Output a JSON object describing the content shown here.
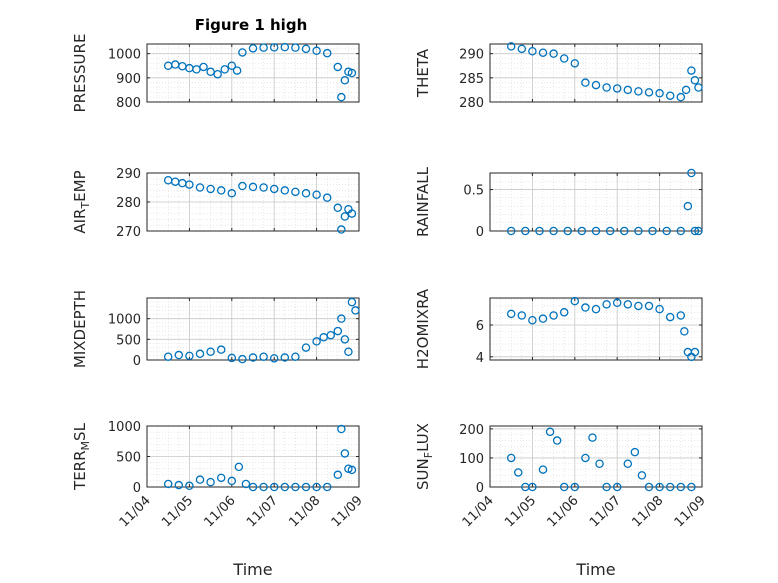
{
  "figure": {
    "title": "Figure 1 high"
  },
  "colors": {
    "marker": "#0072BD",
    "axis": "#262626",
    "grid": "#d9d9d9",
    "background": "#ffffff"
  },
  "chart_data": [
    {
      "type": "scatter",
      "ylabel": "PRESSURE",
      "ylim": [
        800,
        1040
      ],
      "yticks": [
        800,
        900,
        1000
      ],
      "ytick_labels": [
        "800",
        "900",
        "1000"
      ],
      "xlim": [
        "11/04",
        "11/09"
      ],
      "x_dates": [
        "11/04 12:00",
        "11/04 16:00",
        "11/04 20:00",
        "11/05 00:00",
        "11/05 04:00",
        "11/05 08:00",
        "11/05 12:00",
        "11/05 16:00",
        "11/05 20:00",
        "11/06 00:00",
        "11/06 03:00",
        "11/06 06:00",
        "11/06 12:00",
        "11/06 18:00",
        "11/07 00:00",
        "11/07 06:00",
        "11/07 12:00",
        "11/07 18:00",
        "11/08 00:00",
        "11/08 06:00",
        "11/08 12:00",
        "11/08 14:00",
        "11/08 16:00",
        "11/08 18:00",
        "11/08 20:00"
      ],
      "y": [
        950,
        955,
        948,
        940,
        935,
        945,
        925,
        915,
        935,
        950,
        930,
        1005,
        1022,
        1025,
        1026,
        1027,
        1025,
        1020,
        1012,
        1002,
        945,
        820,
        890,
        925,
        920
      ]
    },
    {
      "type": "scatter",
      "ylabel": "THETA",
      "ylim": [
        280,
        292
      ],
      "yticks": [
        280,
        285,
        290
      ],
      "ytick_labels": [
        "280",
        "285",
        "290"
      ],
      "xlim": [
        "11/04",
        "11/09"
      ],
      "x_dates": [
        "11/04 12:00",
        "11/04 18:00",
        "11/05 00:00",
        "11/05 06:00",
        "11/05 12:00",
        "11/05 18:00",
        "11/06 00:00",
        "11/06 06:00",
        "11/06 12:00",
        "11/06 18:00",
        "11/07 00:00",
        "11/07 06:00",
        "11/07 12:00",
        "11/07 18:00",
        "11/08 00:00",
        "11/08 06:00",
        "11/08 12:00",
        "11/08 15:00",
        "11/08 18:00",
        "11/08 20:00",
        "11/08 22:00"
      ],
      "y": [
        291.5,
        291.0,
        290.5,
        290.2,
        290.0,
        289.0,
        288.0,
        284.0,
        283.5,
        283.0,
        282.8,
        282.5,
        282.2,
        282.0,
        281.8,
        281.3,
        281.0,
        282.5,
        286.5,
        284.5,
        283.0
      ]
    },
    {
      "type": "scatter",
      "ylabel": "AIR_TEMP",
      "ylim": [
        270,
        290
      ],
      "yticks": [
        270,
        280,
        290
      ],
      "ytick_labels": [
        "270",
        "280",
        "290"
      ],
      "xlim": [
        "11/04",
        "11/09"
      ],
      "x_dates": [
        "11/04 12:00",
        "11/04 16:00",
        "11/04 20:00",
        "11/05 00:00",
        "11/05 06:00",
        "11/05 12:00",
        "11/05 18:00",
        "11/06 00:00",
        "11/06 06:00",
        "11/06 12:00",
        "11/06 18:00",
        "11/07 00:00",
        "11/07 06:00",
        "11/07 12:00",
        "11/07 18:00",
        "11/08 00:00",
        "11/08 06:00",
        "11/08 12:00",
        "11/08 14:00",
        "11/08 16:00",
        "11/08 18:00",
        "11/08 20:00"
      ],
      "y": [
        287.5,
        287.0,
        286.5,
        286.0,
        285.0,
        284.5,
        284.0,
        283.0,
        285.5,
        285.2,
        285.0,
        284.5,
        284.0,
        283.5,
        283.0,
        282.5,
        281.5,
        278.0,
        270.5,
        275.0,
        277.5,
        276.0
      ]
    },
    {
      "type": "scatter",
      "ylabel": "RAINFALL",
      "ylim": [
        0,
        0.7
      ],
      "yticks": [
        0,
        0.5
      ],
      "ytick_labels": [
        "0",
        "0.5"
      ],
      "xlim": [
        "11/04",
        "11/09"
      ],
      "x_dates": [
        "11/04 12:00",
        "11/04 20:00",
        "11/05 04:00",
        "11/05 12:00",
        "11/05 20:00",
        "11/06 04:00",
        "11/06 12:00",
        "11/06 20:00",
        "11/07 04:00",
        "11/07 12:00",
        "11/07 20:00",
        "11/08 04:00",
        "11/08 12:00",
        "11/08 16:00",
        "11/08 18:00",
        "11/08 20:00",
        "11/08 22:00"
      ],
      "y": [
        0,
        0,
        0,
        0,
        0,
        0,
        0,
        0,
        0,
        0,
        0,
        0,
        0,
        0.3,
        0.7,
        0,
        0
      ]
    },
    {
      "type": "scatter",
      "ylabel": "MIXDEPTH",
      "ylim": [
        0,
        1500
      ],
      "yticks": [
        0,
        500,
        1000
      ],
      "ytick_labels": [
        "0",
        "500",
        "1000"
      ],
      "xlim": [
        "11/04",
        "11/09"
      ],
      "x_dates": [
        "11/04 12:00",
        "11/04 18:00",
        "11/05 00:00",
        "11/05 06:00",
        "11/05 12:00",
        "11/05 18:00",
        "11/06 00:00",
        "11/06 06:00",
        "11/06 12:00",
        "11/06 18:00",
        "11/07 00:00",
        "11/07 06:00",
        "11/07 12:00",
        "11/07 18:00",
        "11/08 00:00",
        "11/08 04:00",
        "11/08 08:00",
        "11/08 12:00",
        "11/08 14:00",
        "11/08 16:00",
        "11/08 18:00",
        "11/08 20:00",
        "11/08 22:00"
      ],
      "y": [
        80,
        120,
        100,
        150,
        200,
        250,
        50,
        20,
        60,
        80,
        40,
        60,
        80,
        300,
        450,
        550,
        600,
        700,
        1000,
        500,
        200,
        1400,
        1200
      ]
    },
    {
      "type": "scatter",
      "ylabel": "H2OMIXRA",
      "ylim": [
        3.8,
        7.7
      ],
      "yticks": [
        4,
        6
      ],
      "ytick_labels": [
        "4",
        "6"
      ],
      "xlim": [
        "11/04",
        "11/09"
      ],
      "x_dates": [
        "11/04 12:00",
        "11/04 18:00",
        "11/05 00:00",
        "11/05 06:00",
        "11/05 12:00",
        "11/05 18:00",
        "11/06 00:00",
        "11/06 06:00",
        "11/06 12:00",
        "11/06 18:00",
        "11/07 00:00",
        "11/07 06:00",
        "11/07 12:00",
        "11/07 18:00",
        "11/08 00:00",
        "11/08 06:00",
        "11/08 12:00",
        "11/08 14:00",
        "11/08 16:00",
        "11/08 18:00",
        "11/08 20:00"
      ],
      "y": [
        6.7,
        6.6,
        6.3,
        6.4,
        6.6,
        6.8,
        7.5,
        7.1,
        7.0,
        7.3,
        7.4,
        7.3,
        7.2,
        7.2,
        7.0,
        6.5,
        6.6,
        5.6,
        4.3,
        4.0,
        4.3
      ]
    },
    {
      "type": "scatter",
      "ylabel": "TERR_MSL",
      "ylim": [
        0,
        1000
      ],
      "yticks": [
        0,
        500,
        1000
      ],
      "ytick_labels": [
        "0",
        "500",
        "1000"
      ],
      "xlim": [
        "11/04",
        "11/09"
      ],
      "x_dates": [
        "11/04 12:00",
        "11/04 18:00",
        "11/05 00:00",
        "11/05 06:00",
        "11/05 12:00",
        "11/05 18:00",
        "11/06 00:00",
        "11/06 04:00",
        "11/06 08:00",
        "11/06 12:00",
        "11/06 18:00",
        "11/07 00:00",
        "11/07 06:00",
        "11/07 12:00",
        "11/07 18:00",
        "11/08 00:00",
        "11/08 06:00",
        "11/08 12:00",
        "11/08 14:00",
        "11/08 16:00",
        "11/08 18:00",
        "11/08 20:00"
      ],
      "y": [
        50,
        30,
        20,
        120,
        80,
        150,
        100,
        330,
        50,
        0,
        0,
        0,
        0,
        0,
        0,
        0,
        0,
        200,
        950,
        550,
        300,
        280
      ]
    },
    {
      "type": "scatter",
      "ylabel": "SUN_FLUX",
      "ylim": [
        0,
        210
      ],
      "yticks": [
        0,
        100,
        200
      ],
      "ytick_labels": [
        "0",
        "100",
        "200"
      ],
      "xlim": [
        "11/04",
        "11/09"
      ],
      "x_dates": [
        "11/04 12:00",
        "11/04 16:00",
        "11/04 20:00",
        "11/05 00:00",
        "11/05 06:00",
        "11/05 10:00",
        "11/05 14:00",
        "11/05 18:00",
        "11/06 00:00",
        "11/06 06:00",
        "11/06 10:00",
        "11/06 14:00",
        "11/06 18:00",
        "11/07 00:00",
        "11/07 06:00",
        "11/07 10:00",
        "11/07 14:00",
        "11/07 18:00",
        "11/08 00:00",
        "11/08 06:00",
        "11/08 12:00",
        "11/08 18:00"
      ],
      "y": [
        100,
        50,
        0,
        0,
        60,
        190,
        160,
        0,
        0,
        100,
        170,
        80,
        0,
        0,
        80,
        120,
        40,
        0,
        0,
        0,
        0,
        0
      ]
    }
  ],
  "xticks": [
    "11/04",
    "11/05",
    "11/06",
    "11/07",
    "11/08",
    "11/09"
  ],
  "xlabel": "Time"
}
